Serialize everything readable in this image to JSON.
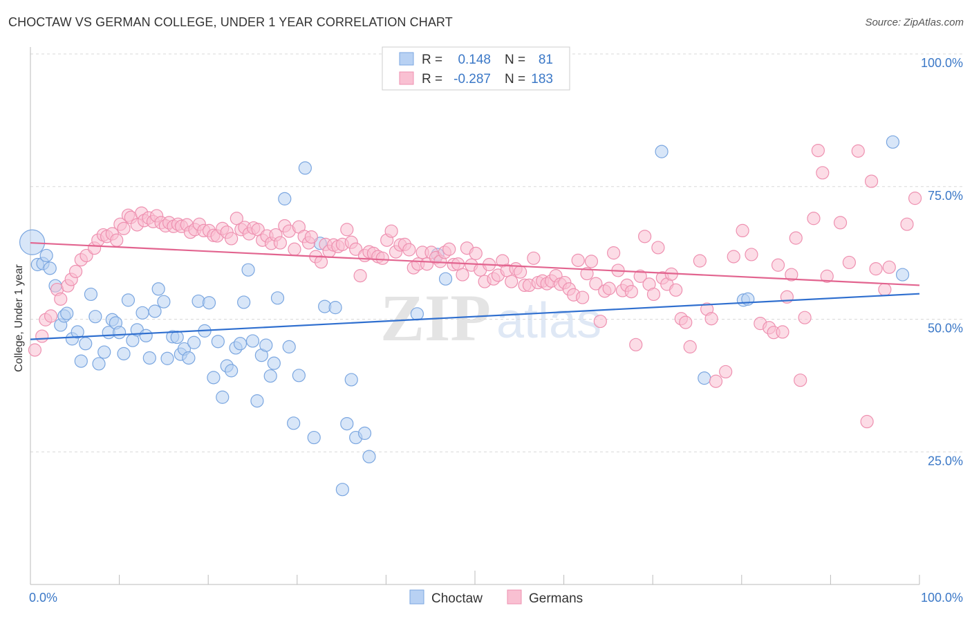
{
  "header": {
    "title": "CHOCTAW VS GERMAN COLLEGE, UNDER 1 YEAR CORRELATION CHART",
    "source": "Source: ZipAtlas.com"
  },
  "watermark": {
    "zip": "ZIP",
    "atlas": "atlas"
  },
  "colors": {
    "choctaw_fill": "#b8d1f3",
    "choctaw_stroke": "#7aa6e0",
    "choctaw_line": "#2f6fcf",
    "germans_fill": "#f9c0d2",
    "germans_stroke": "#ee90b0",
    "germans_line": "#e2648f",
    "tick_text": "#3b78c7",
    "grid": "#d8d8d8"
  },
  "legend_top": {
    "rows": [
      {
        "r_label": "R =",
        "r_value": "0.148",
        "n_label": "N =",
        "n_value": "81",
        "series": "Choctaw"
      },
      {
        "r_label": "R =",
        "r_value": "-0.287",
        "n_label": "N =",
        "n_value": "183",
        "series": "Germans"
      }
    ]
  },
  "chart_data": {
    "type": "scatter",
    "title": "CHOCTAW VS GERMAN COLLEGE, UNDER 1 YEAR CORRELATION CHART",
    "xlabel": "",
    "ylabel": "College, Under 1 year",
    "xlim": [
      0,
      100
    ],
    "ylim": [
      0,
      100
    ],
    "x_tick_labels": [
      "0.0%",
      "100.0%"
    ],
    "y_tick_labels": [
      "100.0%",
      "75.0%",
      "50.0%",
      "25.0%"
    ],
    "y_ticks": [
      100,
      75,
      50,
      25
    ],
    "grid": true,
    "legend_position": "bottom",
    "series": [
      {
        "name": "Choctaw",
        "r": 0.148,
        "n": 81,
        "trend": {
          "x": [
            0,
            100
          ],
          "y": [
            46.2,
            54.8
          ]
        },
        "points": [
          [
            0.2,
            64.5
          ],
          [
            0.8,
            60.3
          ],
          [
            1.4,
            60.5
          ],
          [
            1.8,
            62.0
          ],
          [
            2.2,
            59.6
          ],
          [
            2.8,
            56.3
          ],
          [
            3.4,
            48.9
          ],
          [
            3.8,
            50.6
          ],
          [
            4.1,
            51.1
          ],
          [
            4.7,
            46.3
          ],
          [
            5.3,
            47.6
          ],
          [
            5.7,
            42.1
          ],
          [
            6.2,
            45.4
          ],
          [
            6.8,
            54.7
          ],
          [
            7.3,
            50.5
          ],
          [
            7.7,
            41.6
          ],
          [
            8.3,
            43.8
          ],
          [
            8.8,
            47.5
          ],
          [
            9.2,
            49.9
          ],
          [
            9.6,
            49.3
          ],
          [
            10.0,
            47.5
          ],
          [
            10.5,
            43.5
          ],
          [
            11.0,
            53.6
          ],
          [
            11.5,
            46.0
          ],
          [
            12.0,
            48.0
          ],
          [
            12.6,
            51.2
          ],
          [
            13.0,
            46.9
          ],
          [
            13.4,
            42.7
          ],
          [
            14.0,
            51.5
          ],
          [
            14.4,
            55.7
          ],
          [
            15.0,
            53.3
          ],
          [
            15.4,
            42.6
          ],
          [
            16.0,
            46.7
          ],
          [
            16.5,
            46.6
          ],
          [
            16.9,
            43.4
          ],
          [
            17.3,
            44.4
          ],
          [
            17.8,
            42.7
          ],
          [
            18.4,
            45.6
          ],
          [
            18.9,
            53.4
          ],
          [
            19.6,
            47.8
          ],
          [
            20.1,
            53.1
          ],
          [
            20.6,
            39.0
          ],
          [
            21.1,
            45.8
          ],
          [
            21.6,
            35.3
          ],
          [
            22.1,
            41.2
          ],
          [
            22.6,
            40.3
          ],
          [
            23.1,
            44.6
          ],
          [
            23.6,
            45.4
          ],
          [
            24.0,
            53.2
          ],
          [
            24.5,
            59.3
          ],
          [
            25.0,
            45.9
          ],
          [
            25.5,
            34.6
          ],
          [
            26.0,
            43.2
          ],
          [
            26.5,
            45.1
          ],
          [
            27.0,
            39.3
          ],
          [
            27.4,
            41.7
          ],
          [
            27.8,
            54.0
          ],
          [
            28.6,
            72.7
          ],
          [
            29.1,
            44.8
          ],
          [
            29.6,
            30.4
          ],
          [
            30.2,
            39.4
          ],
          [
            30.9,
            78.5
          ],
          [
            31.9,
            27.7
          ],
          [
            32.6,
            64.3
          ],
          [
            33.1,
            52.4
          ],
          [
            34.3,
            52.2
          ],
          [
            35.1,
            17.9
          ],
          [
            35.6,
            30.3
          ],
          [
            36.1,
            38.6
          ],
          [
            36.6,
            27.7
          ],
          [
            37.6,
            28.5
          ],
          [
            38.1,
            24.1
          ],
          [
            43.5,
            51.0
          ],
          [
            45.8,
            62.2
          ],
          [
            46.7,
            57.6
          ],
          [
            71.0,
            81.6
          ],
          [
            75.8,
            38.9
          ],
          [
            80.2,
            53.6
          ],
          [
            80.7,
            53.8
          ],
          [
            97.0,
            83.4
          ],
          [
            98.1,
            58.4
          ]
        ]
      },
      {
        "name": "Germans",
        "r": -0.287,
        "n": 183,
        "trend": {
          "x": [
            0,
            100
          ],
          "y": [
            64.4,
            56.4
          ]
        },
        "points": [
          [
            0.5,
            44.2
          ],
          [
            1.3,
            46.8
          ],
          [
            1.7,
            49.9
          ],
          [
            2.3,
            50.6
          ],
          [
            3.0,
            55.6
          ],
          [
            3.4,
            53.8
          ],
          [
            4.2,
            56.3
          ],
          [
            4.6,
            57.5
          ],
          [
            5.1,
            59.0
          ],
          [
            5.7,
            61.2
          ],
          [
            6.3,
            62.0
          ],
          [
            7.2,
            63.4
          ],
          [
            7.6,
            64.9
          ],
          [
            8.2,
            65.9
          ],
          [
            8.6,
            65.6
          ],
          [
            9.2,
            66.1
          ],
          [
            9.7,
            64.9
          ],
          [
            10.1,
            67.9
          ],
          [
            10.5,
            67.1
          ],
          [
            11.0,
            69.6
          ],
          [
            11.3,
            69.2
          ],
          [
            12.0,
            67.8
          ],
          [
            12.5,
            70.0
          ],
          [
            12.8,
            68.6
          ],
          [
            13.3,
            69.1
          ],
          [
            13.8,
            68.4
          ],
          [
            14.2,
            69.5
          ],
          [
            14.7,
            68.2
          ],
          [
            15.2,
            67.6
          ],
          [
            15.6,
            68.2
          ],
          [
            16.1,
            67.5
          ],
          [
            16.6,
            67.9
          ],
          [
            17.0,
            67.5
          ],
          [
            17.6,
            67.8
          ],
          [
            18.0,
            66.4
          ],
          [
            18.5,
            66.9
          ],
          [
            19.0,
            67.9
          ],
          [
            19.5,
            66.7
          ],
          [
            20.1,
            66.7
          ],
          [
            20.6,
            65.8
          ],
          [
            21.0,
            65.7
          ],
          [
            21.6,
            67.1
          ],
          [
            22.1,
            66.4
          ],
          [
            22.6,
            65.2
          ],
          [
            23.2,
            69.0
          ],
          [
            23.7,
            66.9
          ],
          [
            24.1,
            67.3
          ],
          [
            24.6,
            66.1
          ],
          [
            25.1,
            67.2
          ],
          [
            25.6,
            66.9
          ],
          [
            26.1,
            64.9
          ],
          [
            26.6,
            65.7
          ],
          [
            27.1,
            64.3
          ],
          [
            27.6,
            65.9
          ],
          [
            28.1,
            64.4
          ],
          [
            28.6,
            67.6
          ],
          [
            29.1,
            66.6
          ],
          [
            29.7,
            63.2
          ],
          [
            30.2,
            67.4
          ],
          [
            30.8,
            65.6
          ],
          [
            31.3,
            64.4
          ],
          [
            31.6,
            65.5
          ],
          [
            32.1,
            61.8
          ],
          [
            32.7,
            60.8
          ],
          [
            33.2,
            64.1
          ],
          [
            33.6,
            62.8
          ],
          [
            34.1,
            64.0
          ],
          [
            34.6,
            63.7
          ],
          [
            35.1,
            64.1
          ],
          [
            35.6,
            66.9
          ],
          [
            36.1,
            64.5
          ],
          [
            36.6,
            63.2
          ],
          [
            37.1,
            58.2
          ],
          [
            37.6,
            62.0
          ],
          [
            38.1,
            62.7
          ],
          [
            38.6,
            62.4
          ],
          [
            39.1,
            61.8
          ],
          [
            39.6,
            61.5
          ],
          [
            40.1,
            64.9
          ],
          [
            40.6,
            66.6
          ],
          [
            41.1,
            62.7
          ],
          [
            41.6,
            64.0
          ],
          [
            42.1,
            64.1
          ],
          [
            42.6,
            63.1
          ],
          [
            43.1,
            59.7
          ],
          [
            43.6,
            60.4
          ],
          [
            44.1,
            62.6
          ],
          [
            44.6,
            60.4
          ],
          [
            45.1,
            62.6
          ],
          [
            45.6,
            61.6
          ],
          [
            46.1,
            60.9
          ],
          [
            46.6,
            62.6
          ],
          [
            47.1,
            63.2
          ],
          [
            47.6,
            60.3
          ],
          [
            48.1,
            60.4
          ],
          [
            48.6,
            58.4
          ],
          [
            49.1,
            63.4
          ],
          [
            49.6,
            60.2
          ],
          [
            50.1,
            62.4
          ],
          [
            50.6,
            59.3
          ],
          [
            51.1,
            57.1
          ],
          [
            51.6,
            60.3
          ],
          [
            52.1,
            57.6
          ],
          [
            52.6,
            58.3
          ],
          [
            53.1,
            61.0
          ],
          [
            53.6,
            59.2
          ],
          [
            54.1,
            57.1
          ],
          [
            54.6,
            59.5
          ],
          [
            55.1,
            58.9
          ],
          [
            55.6,
            56.4
          ],
          [
            56.1,
            56.4
          ],
          [
            56.6,
            61.5
          ],
          [
            57.1,
            56.9
          ],
          [
            57.6,
            57.2
          ],
          [
            58.1,
            56.7
          ],
          [
            58.6,
            57.2
          ],
          [
            59.1,
            58.2
          ],
          [
            59.6,
            56.6
          ],
          [
            60.1,
            56.9
          ],
          [
            60.6,
            55.7
          ],
          [
            61.1,
            54.6
          ],
          [
            61.6,
            61.1
          ],
          [
            62.1,
            54.1
          ],
          [
            62.6,
            58.6
          ],
          [
            63.1,
            60.9
          ],
          [
            63.6,
            56.7
          ],
          [
            64.1,
            49.6
          ],
          [
            64.6,
            55.3
          ],
          [
            65.1,
            55.8
          ],
          [
            65.6,
            62.5
          ],
          [
            66.1,
            59.2
          ],
          [
            66.6,
            55.4
          ],
          [
            67.1,
            56.4
          ],
          [
            67.6,
            55.2
          ],
          [
            68.1,
            45.2
          ],
          [
            68.6,
            58.1
          ],
          [
            69.1,
            65.6
          ],
          [
            69.6,
            56.6
          ],
          [
            70.1,
            54.7
          ],
          [
            70.6,
            63.5
          ],
          [
            71.1,
            57.8
          ],
          [
            71.6,
            56.6
          ],
          [
            72.1,
            58.5
          ],
          [
            72.6,
            55.5
          ],
          [
            73.2,
            50.1
          ],
          [
            73.7,
            49.4
          ],
          [
            74.2,
            44.8
          ],
          [
            75.3,
            61.0
          ],
          [
            76.1,
            51.9
          ],
          [
            76.6,
            50.1
          ],
          [
            77.1,
            38.3
          ],
          [
            78.2,
            40.1
          ],
          [
            79.1,
            61.8
          ],
          [
            80.1,
            66.7
          ],
          [
            81.1,
            62.2
          ],
          [
            82.1,
            49.2
          ],
          [
            83.1,
            48.4
          ],
          [
            83.6,
            47.5
          ],
          [
            84.1,
            60.2
          ],
          [
            84.6,
            47.6
          ],
          [
            85.1,
            54.2
          ],
          [
            85.6,
            58.4
          ],
          [
            86.1,
            65.3
          ],
          [
            86.6,
            38.5
          ],
          [
            87.1,
            50.3
          ],
          [
            88.1,
            69.0
          ],
          [
            88.6,
            81.8
          ],
          [
            89.1,
            77.6
          ],
          [
            89.6,
            58.1
          ],
          [
            91.1,
            68.2
          ],
          [
            92.1,
            60.7
          ],
          [
            93.1,
            81.7
          ],
          [
            94.1,
            30.7
          ],
          [
            94.6,
            76.0
          ],
          [
            95.1,
            59.5
          ],
          [
            96.1,
            55.6
          ],
          [
            96.6,
            59.8
          ],
          [
            98.6,
            67.9
          ],
          [
            99.5,
            72.8
          ]
        ]
      }
    ]
  },
  "legend_bottom": {
    "items": [
      "Choctaw",
      "Germans"
    ]
  }
}
